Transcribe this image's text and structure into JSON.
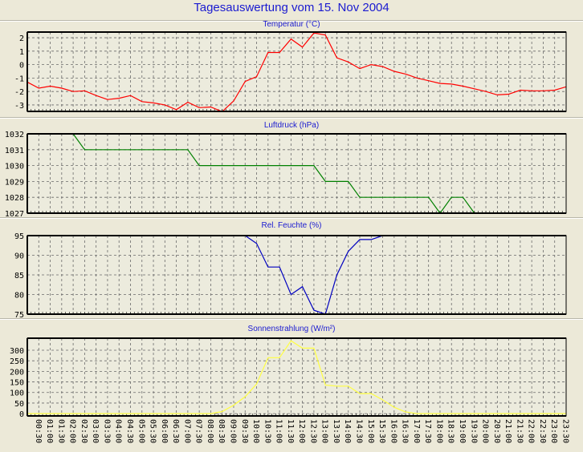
{
  "title": "Tagesauswertung vom 15. Nov 2004",
  "x_labels": [
    "00:30",
    "01:00",
    "01:30",
    "02:00",
    "02:30",
    "03:00",
    "03:30",
    "04:00",
    "04:30",
    "05:00",
    "05:30",
    "06:00",
    "06:30",
    "07:00",
    "07:30",
    "08:00",
    "08:30",
    "09:00",
    "09:30",
    "10:00",
    "10:30",
    "11:00",
    "11:30",
    "12:00",
    "12:30",
    "13:00",
    "13:30",
    "14:00",
    "14:30",
    "15:00",
    "15:30",
    "16:00",
    "16:30",
    "17:00",
    "17:30",
    "18:00",
    "18:30",
    "19:00",
    "19:30",
    "20:00",
    "20:30",
    "21:00",
    "21:30",
    "22:00",
    "22:30",
    "23:00",
    "23:30"
  ],
  "chart_data": [
    {
      "type": "line",
      "title": "Temperatur (°C)",
      "color": "#ff0000",
      "xlabel": "",
      "ylabel": "",
      "x_unit": "hours",
      "x_step_hours": 0.5,
      "xlim": [
        0,
        23.5
      ],
      "ylim": [
        -3.48,
        2.42
      ],
      "yticks": [
        -3,
        -2,
        -1,
        0,
        1,
        2
      ],
      "ytick_labels": [
        "-3",
        "-2",
        "-1",
        "0",
        "1",
        "2"
      ],
      "grid": true,
      "values": [
        -1.3,
        -1.75,
        -1.6,
        -1.75,
        -2.0,
        -1.95,
        -2.3,
        -2.6,
        -2.5,
        -2.3,
        -2.75,
        -2.85,
        -3.0,
        -3.35,
        -2.8,
        -3.2,
        -3.15,
        -3.5,
        -2.7,
        -1.25,
        -0.9,
        0.9,
        0.9,
        1.9,
        1.3,
        2.35,
        2.2,
        0.5,
        0.2,
        -0.3,
        0.0,
        -0.15,
        -0.5,
        -0.7,
        -1.0,
        -1.2,
        -1.4,
        -1.45,
        -1.6,
        -1.8,
        -2.0,
        -2.25,
        -2.2,
        -1.9,
        -1.95,
        -1.95,
        -1.9,
        -1.65
      ]
    },
    {
      "type": "line",
      "title": "Luftdruck (hPa)",
      "color": "#008000",
      "xlabel": "",
      "ylabel": "",
      "x_unit": "hours",
      "x_step_hours": 0.5,
      "xlim": [
        0,
        23.5
      ],
      "ylim": [
        1027,
        1032
      ],
      "yticks": [
        1027,
        1028,
        1029,
        1030,
        1031,
        1032
      ],
      "ytick_labels": [
        "1027",
        "1028",
        "1029",
        "1030",
        "1031",
        "1032"
      ],
      "grid": true,
      "values": [
        null,
        null,
        null,
        null,
        1032,
        1031,
        1031,
        1031,
        1031,
        1031,
        1031,
        1031,
        1031,
        1031,
        1031,
        1030,
        1030,
        1030,
        1030,
        1030,
        1030,
        1030,
        1030,
        1030,
        1030,
        1030,
        1029,
        1029,
        1029,
        1028,
        1028,
        1028,
        1028,
        1028,
        1028,
        1028,
        1027,
        1028,
        1028,
        1027,
        null,
        null,
        null,
        null,
        null,
        null,
        null,
        null
      ]
    },
    {
      "type": "line",
      "title": "Rel. Feuchte (%)",
      "color": "#0000c0",
      "xlabel": "",
      "ylabel": "",
      "x_unit": "hours",
      "x_step_hours": 0.5,
      "xlim": [
        0,
        23.5
      ],
      "ylim": [
        75,
        95
      ],
      "yticks": [
        75,
        80,
        85,
        90,
        95
      ],
      "ytick_labels": [
        "75",
        "80",
        "85",
        "90",
        "95"
      ],
      "grid": true,
      "values": [
        null,
        null,
        null,
        null,
        null,
        null,
        null,
        null,
        null,
        null,
        null,
        null,
        null,
        null,
        null,
        null,
        null,
        null,
        null,
        95,
        93,
        87,
        87,
        80,
        82,
        76,
        75,
        85,
        91,
        94,
        94,
        95,
        null,
        null,
        null,
        null,
        null,
        null,
        null,
        null,
        null,
        null,
        null,
        null,
        null,
        null,
        null,
        null
      ]
    },
    {
      "type": "line",
      "title": "Sonnenstrahlung (W/m²)",
      "color": "#ffff40",
      "xlabel": "",
      "ylabel": "",
      "x_unit": "hours",
      "x_step_hours": 0.5,
      "xlim": [
        0,
        23.5
      ],
      "ylim": [
        -11,
        357
      ],
      "yticks": [
        0,
        50,
        100,
        150,
        200,
        250,
        300
      ],
      "ytick_labels": [
        "0",
        "50",
        "100",
        "150",
        "200",
        "250",
        "300"
      ],
      "grid": true,
      "values": [
        0,
        0,
        0,
        0,
        0,
        0,
        0,
        0,
        0,
        0,
        0,
        0,
        0,
        0,
        0,
        0,
        0,
        10,
        40,
        80,
        140,
        265,
        265,
        345,
        310,
        310,
        135,
        130,
        130,
        95,
        95,
        65,
        30,
        8,
        0,
        0,
        0,
        0,
        0,
        0,
        0,
        0,
        0,
        0,
        0,
        0,
        0,
        0
      ]
    }
  ]
}
